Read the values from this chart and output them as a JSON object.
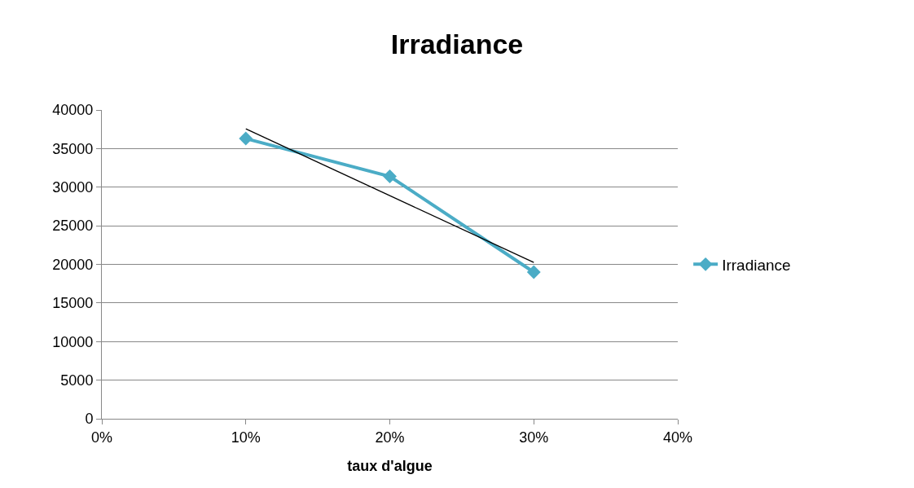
{
  "chart_data": {
    "type": "line",
    "title": "Irradiance",
    "xlabel": "taux d'algue",
    "x": [
      10,
      20,
      30
    ],
    "series": [
      {
        "name": "Irradiance",
        "color": "#4bacc6",
        "values": [
          36300,
          31400,
          19000
        ],
        "marker": "diamond"
      },
      {
        "type": "line",
        "color": "#000000",
        "x": [
          10,
          30
        ],
        "values": [
          37550,
          20250
        ],
        "marker": "none"
      }
    ],
    "xlim": [
      0,
      40
    ],
    "xticks": [
      {
        "value": 0,
        "label": "0%"
      },
      {
        "value": 10,
        "label": "10%"
      },
      {
        "value": 20,
        "label": "20%"
      },
      {
        "value": 30,
        "label": "30%"
      },
      {
        "value": 40,
        "label": "40%"
      }
    ],
    "ylim": [
      0,
      40000
    ],
    "yticks": [
      0,
      5000,
      10000,
      15000,
      20000,
      25000,
      30000,
      35000,
      40000
    ],
    "grid": "y",
    "legend": "right"
  }
}
